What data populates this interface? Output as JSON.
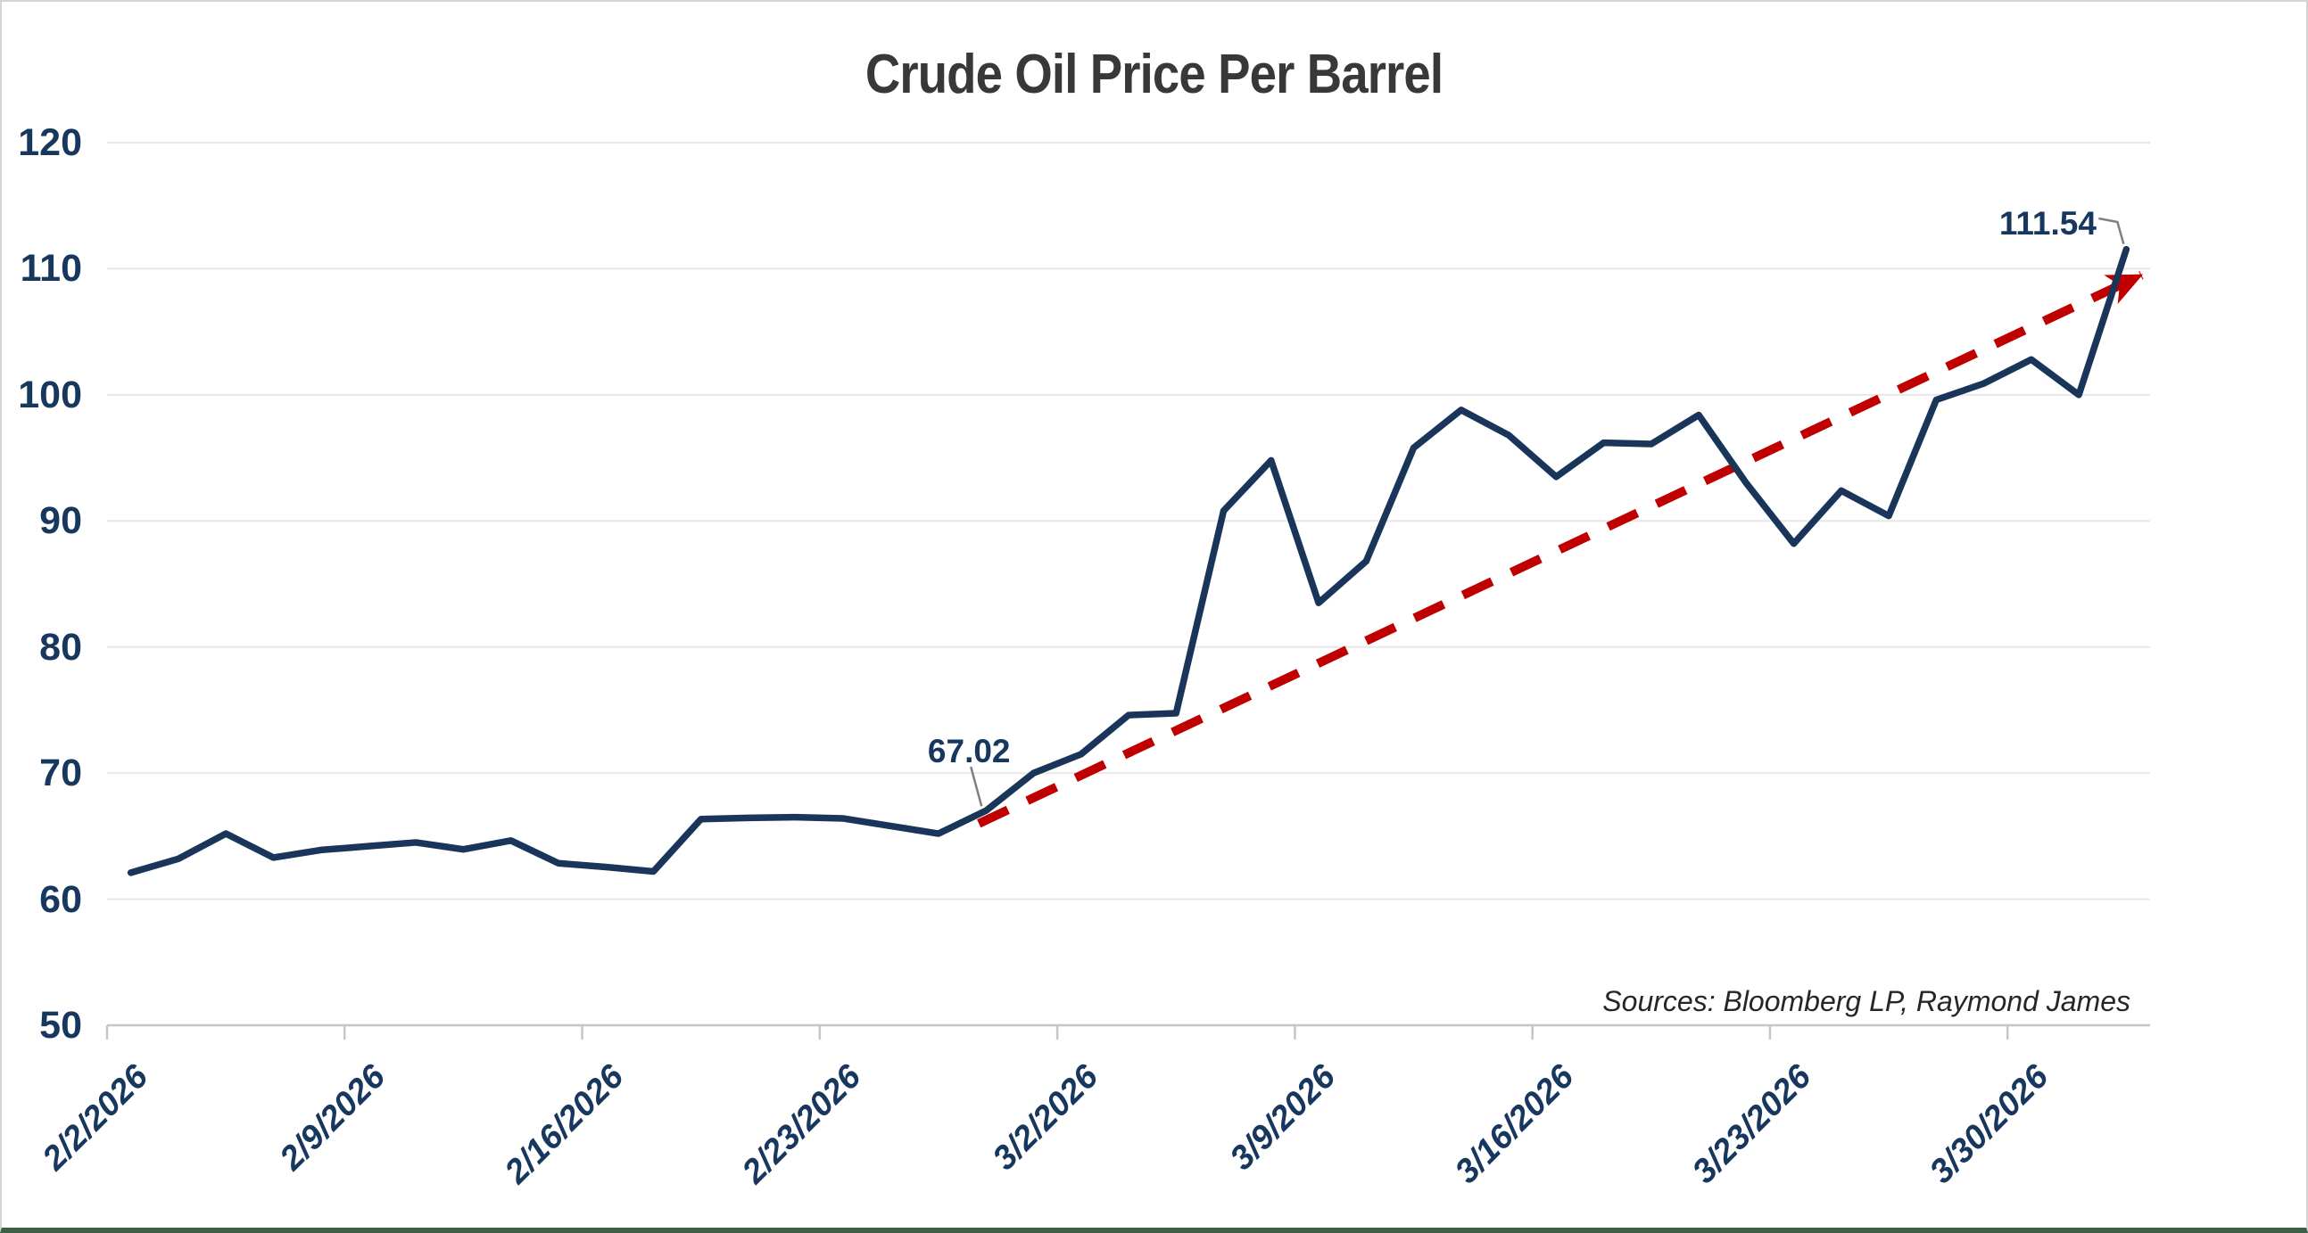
{
  "title": "Crude Oil Price Per Barrel",
  "source_note": "Sources: Bloomberg LP, Raymond James",
  "y_axis": {
    "ticks": [
      120,
      110,
      100,
      90,
      80,
      70,
      60,
      50
    ]
  },
  "x_axis": {
    "tick_labels": [
      "2/2/2026",
      "2/9/2026",
      "2/16/2026",
      "2/23/2026",
      "3/2/2026",
      "3/9/2026",
      "3/16/2026",
      "3/23/2026",
      "3/30/2026"
    ]
  },
  "annotations": [
    {
      "label": "67.02",
      "point_index": 18
    },
    {
      "label": "111.54",
      "point_index": 42
    }
  ],
  "colors": {
    "series": "#19365a",
    "trend": "#c00000",
    "axis_text": "#17375e",
    "title_text": "#383838",
    "grid": "#e8e8e8",
    "axis_line": "#c6c6c6",
    "leader": "#808080",
    "source_text": "#262626",
    "frame": "#d4d4d4",
    "bottom_edge": "#3a5f42"
  },
  "chart_data": {
    "type": "line",
    "title": "Crude Oil Price Per Barrel",
    "xlabel": "",
    "ylabel": "",
    "ylim": [
      50,
      120
    ],
    "grid": true,
    "legend": "none",
    "x": [
      "2/2/2026",
      "2/3/2026",
      "2/4/2026",
      "2/5/2026",
      "2/6/2026",
      "2/9/2026",
      "2/10/2026",
      "2/11/2026",
      "2/12/2026",
      "2/13/2026",
      "2/16/2026",
      "2/17/2026",
      "2/18/2026",
      "2/19/2026",
      "2/20/2026",
      "2/23/2026",
      "2/24/2026",
      "2/25/2026",
      "2/26/2026",
      "2/27/2026",
      "3/2/2026",
      "3/3/2026",
      "3/4/2026",
      "3/5/2026",
      "3/6/2026",
      "3/9/2026",
      "3/10/2026",
      "3/11/2026",
      "3/12/2026",
      "3/13/2026",
      "3/16/2026",
      "3/17/2026",
      "3/18/2026",
      "3/19/2026",
      "3/20/2026",
      "3/23/2026",
      "3/24/2026",
      "3/25/2026",
      "3/26/2026",
      "3/27/2026",
      "3/30/2026",
      "3/31/2026",
      "4/1/2026"
    ],
    "series": [
      {
        "name": "Crude oil price per barrel (USD)",
        "color": "#19365a",
        "values": [
          62.1,
          63.2,
          65.2,
          63.3,
          63.9,
          64.2,
          64.5,
          63.95,
          64.65,
          62.85,
          62.55,
          62.2,
          66.35,
          66.45,
          66.5,
          66.4,
          65.8,
          65.2,
          67.02,
          70.0,
          71.5,
          74.6,
          74.75,
          90.8,
          94.8,
          83.5,
          86.8,
          95.8,
          98.8,
          96.8,
          93.5,
          96.2,
          96.1,
          98.4,
          93.0,
          88.2,
          92.4,
          90.4,
          99.6,
          100.9,
          102.8,
          100.0,
          111.54
        ]
      }
    ],
    "annotated_points": [
      {
        "x": "2/26/2026",
        "value": 67.02
      },
      {
        "x": "4/1/2026",
        "value": 111.54
      }
    ],
    "trend_line": {
      "style": "dashed-arrow",
      "color": "#c00000",
      "from": {
        "x": "2/26/2026",
        "value": 66.0
      },
      "to": {
        "x": "4/1/2026",
        "value": 109.5
      },
      "note": "red dashed upward trend arrow ending with arrowhead"
    }
  }
}
